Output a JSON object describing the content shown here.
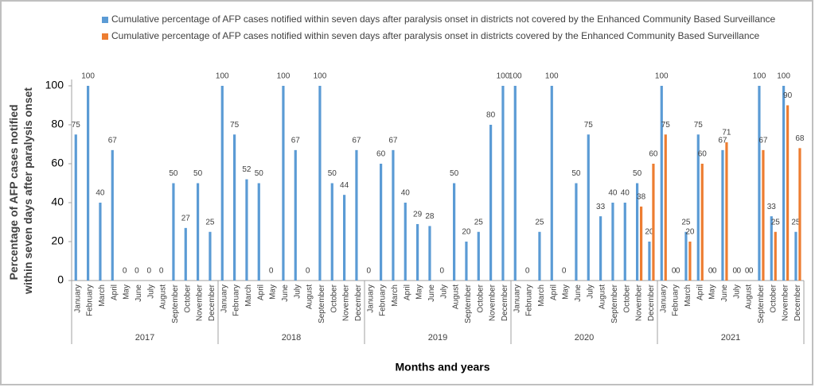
{
  "chart_data": {
    "type": "bar",
    "ylabel": [
      "Percentage of AFP cases notified",
      "within seven days after paralysis onset"
    ],
    "xlabel": "Months and years",
    "categories": [
      "January",
      "February",
      "March",
      "April",
      "May",
      "June",
      "July",
      "August",
      "September",
      "October",
      "November",
      "December",
      "January",
      "February",
      "March",
      "April",
      "May",
      "June",
      "July",
      "August",
      "September",
      "October",
      "November",
      "December",
      "January",
      "February",
      "March",
      "April",
      "May",
      "June",
      "July",
      "August",
      "September",
      "October",
      "November",
      "December",
      "January",
      "February",
      "March",
      "April",
      "May",
      "June",
      "July",
      "August",
      "September",
      "October",
      "November",
      "December",
      "January",
      "February",
      "March",
      "April",
      "May",
      "June",
      "July",
      "August",
      "September",
      "October",
      "November",
      "December"
    ],
    "years": [
      "2017",
      "2018",
      "2019",
      "2020",
      "2021"
    ],
    "series": [
      {
        "name": "Cumulative percentage of AFP cases notified within seven days after paralysis onset in districts not covered by the Enhanced Community Based Surveillance",
        "color": "#5b9bd5",
        "values": [
          75,
          100,
          40,
          67,
          0,
          0,
          0,
          0,
          50,
          27,
          50,
          25,
          100,
          75,
          52,
          50,
          0,
          100,
          67,
          0,
          100,
          50,
          44,
          67,
          0,
          60,
          67,
          40,
          29,
          28,
          0,
          50,
          20,
          25,
          80,
          100,
          100,
          0,
          25,
          100,
          0,
          50,
          75,
          33,
          40,
          40,
          50,
          20,
          100,
          0,
          25,
          75,
          0,
          67,
          0,
          0,
          100,
          33,
          100,
          25
        ]
      },
      {
        "name": "Cumulative percentage of AFP cases notified within seven days after paralysis onset in districts covered by the Enhanced Community Based Surveillance",
        "color": "#ed7d31",
        "values": [
          null,
          null,
          null,
          null,
          null,
          null,
          null,
          null,
          null,
          null,
          null,
          null,
          null,
          null,
          null,
          null,
          null,
          null,
          null,
          null,
          null,
          null,
          null,
          null,
          null,
          null,
          null,
          null,
          null,
          null,
          null,
          null,
          null,
          null,
          null,
          null,
          null,
          null,
          null,
          null,
          null,
          null,
          null,
          null,
          null,
          null,
          38,
          60,
          75,
          0,
          20,
          60,
          0,
          71,
          0,
          0,
          67,
          25,
          90,
          68
        ]
      }
    ],
    "ylim": [
      0,
      100
    ],
    "yticks": [
      0,
      20,
      40,
      60,
      80,
      100
    ],
    "grid": false
  }
}
